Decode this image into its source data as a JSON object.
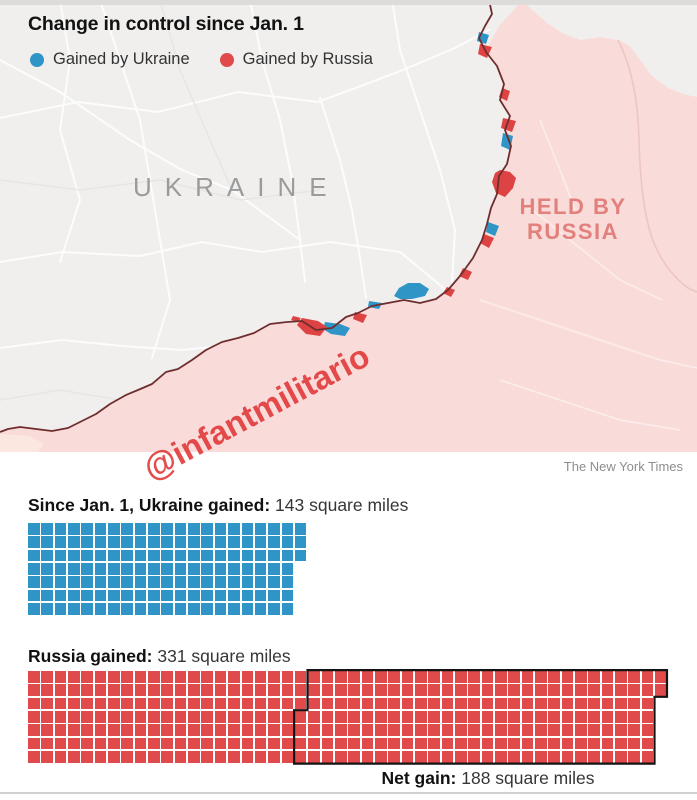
{
  "title": "Change in control since Jan. 1",
  "legend": [
    {
      "label": "Gained by Ukraine",
      "color": "#2e95c6"
    },
    {
      "label": "Gained by Russia",
      "color": "#e04a4a"
    }
  ],
  "map": {
    "country_label": "UKRAINE",
    "held_label_line1": "HELD BY",
    "held_label_line2": "RUSSIA",
    "held_region_color": "#f9dbda",
    "frontline_color": "#6f2e2e",
    "background_color": "#f0efee"
  },
  "watermark": "@infantmilitario",
  "credit": "The New York Times",
  "waffles": [
    {
      "label_bold": "Since Jan. 1, Ukraine gained:",
      "label_value": "143 square miles",
      "color": "#2e95c6",
      "rows": [
        21,
        21,
        21,
        20,
        20,
        20,
        20
      ]
    },
    {
      "label_bold": "Russia gained:",
      "label_value": "331 square miles",
      "color": "#e04a4a",
      "rows": [
        48,
        48,
        47,
        47,
        47,
        47,
        47
      ]
    }
  ],
  "net": {
    "label_bold": "Net gain:",
    "label_value": "188 square miles"
  },
  "chart_data": [
    {
      "type": "waffle",
      "title": "Since Jan. 1, Ukraine gained",
      "total_square_miles": 143,
      "square_size_miles": 1,
      "rows": [
        21,
        21,
        21,
        20,
        20,
        20,
        20
      ],
      "color": "#2e95c6"
    },
    {
      "type": "waffle",
      "title": "Russia gained",
      "total_square_miles": 331,
      "square_size_miles": 1,
      "rows": [
        48,
        48,
        47,
        47,
        47,
        47,
        47
      ],
      "color": "#e04a4a",
      "annotation": {
        "label": "Net gain",
        "value_square_miles": 188,
        "outlined_in_black": true
      }
    }
  ]
}
